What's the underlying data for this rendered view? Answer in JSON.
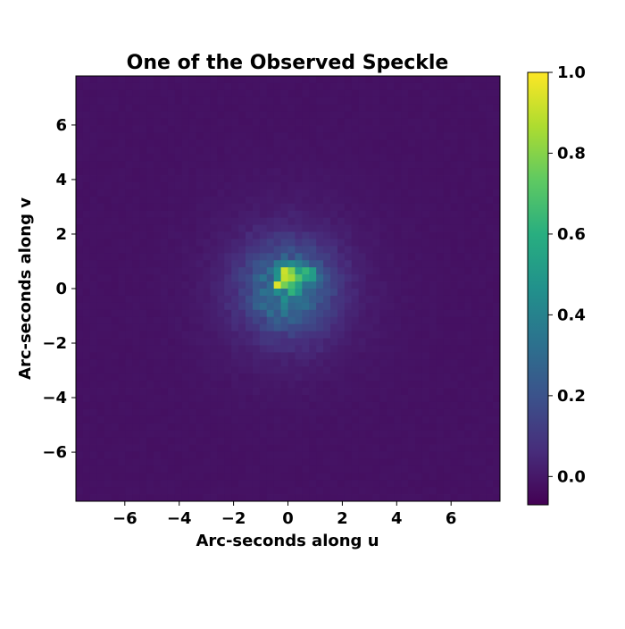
{
  "chart_data": {
    "type": "heatmap",
    "title": "One of the Observed Speckle",
    "xlabel": "Arc-seconds along u",
    "ylabel": "Arc-seconds along v",
    "xlim": [
      -7.8,
      7.8
    ],
    "ylim": [
      -7.8,
      7.8
    ],
    "xticks": [
      -6,
      -4,
      -2,
      0,
      2,
      4,
      6
    ],
    "xtick_labels": [
      "−6",
      "−4",
      "−2",
      "0",
      "2",
      "4",
      "6"
    ],
    "yticks": [
      -6,
      -4,
      -2,
      0,
      2,
      4,
      6
    ],
    "ytick_labels": [
      "−6",
      "−4",
      "−2",
      "0",
      "2",
      "4",
      "6"
    ],
    "colormap": "viridis",
    "colorbar": {
      "vmin": -0.07,
      "vmax": 1.0,
      "ticks": [
        0.0,
        0.2,
        0.4,
        0.6,
        0.8,
        1.0
      ],
      "tick_labels": [
        "0.0",
        "0.2",
        "0.4",
        "0.6",
        "0.8",
        "1.0"
      ]
    },
    "grid": false,
    "peak": {
      "u": -0.3,
      "v": 0.1,
      "value": 1.0
    },
    "secondary_peaks": [
      {
        "u": 0.0,
        "v": 0.6,
        "value": 0.7
      },
      {
        "u": 0.6,
        "v": 0.6,
        "value": 0.68
      },
      {
        "u": 0.2,
        "v": 0.3,
        "value": 0.72
      },
      {
        "u": -0.2,
        "v": 0.5,
        "value": 0.65
      },
      {
        "u": 0.9,
        "v": 0.5,
        "value": 0.55
      },
      {
        "u": 0.3,
        "v": -0.1,
        "value": 0.5
      }
    ]
  }
}
